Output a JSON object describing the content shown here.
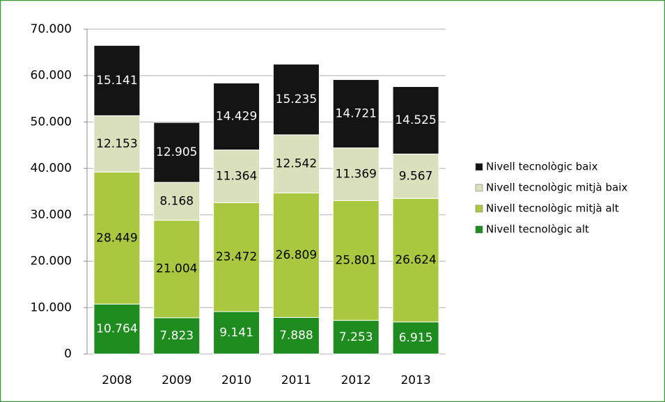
{
  "chart_data": {
    "type": "stacked_bar",
    "categories": [
      "2008",
      "2009",
      "2010",
      "2011",
      "2012",
      "2013"
    ],
    "series": [
      {
        "name": "Nivell tecnològic alt",
        "color": "#1e8c1e",
        "values": [
          10764,
          7823,
          9141,
          7888,
          7253,
          6915
        ],
        "value_labels": [
          "10.764",
          "7.823",
          "9.141",
          "7.888",
          "7.253",
          "6.915"
        ]
      },
      {
        "name": "Nivell tecnològic mitjà alt",
        "color": "#a9c840",
        "values": [
          28449,
          21004,
          23472,
          26809,
          25801,
          26624
        ],
        "value_labels": [
          "28.449",
          "21.004",
          "23.472",
          "26.809",
          "25.801",
          "26.624"
        ]
      },
      {
        "name": "Nivell tecnològic mitjà baix",
        "color": "#d9e0bb",
        "values": [
          12153,
          8168,
          11364,
          12542,
          11369,
          9567
        ],
        "value_labels": [
          "12.153",
          "8.168",
          "11.364",
          "12.542",
          "11.369",
          "9.567"
        ]
      },
      {
        "name": "Nivell tecnològic baix",
        "color": "#141414",
        "values": [
          15141,
          12905,
          14429,
          15235,
          14721,
          14525
        ],
        "value_labels": [
          "15.141",
          "12.905",
          "14.429",
          "15.235",
          "14.721",
          "14.525"
        ]
      }
    ],
    "ylim": [
      0,
      70000
    ],
    "yticks": [
      0,
      {
        "value": 10000,
        "label": "10.000"
      },
      {
        "value": 20000,
        "label": "20.000"
      },
      {
        "value": 30000,
        "label": "30.000"
      },
      {
        "value": 40000,
        "label": "40.000"
      },
      {
        "value": 50000,
        "label": "50.000"
      },
      {
        "value": 60000,
        "label": "60.000"
      },
      {
        "value": 70000,
        "label": "70.000"
      }
    ],
    "grid": true,
    "legend": "right"
  }
}
